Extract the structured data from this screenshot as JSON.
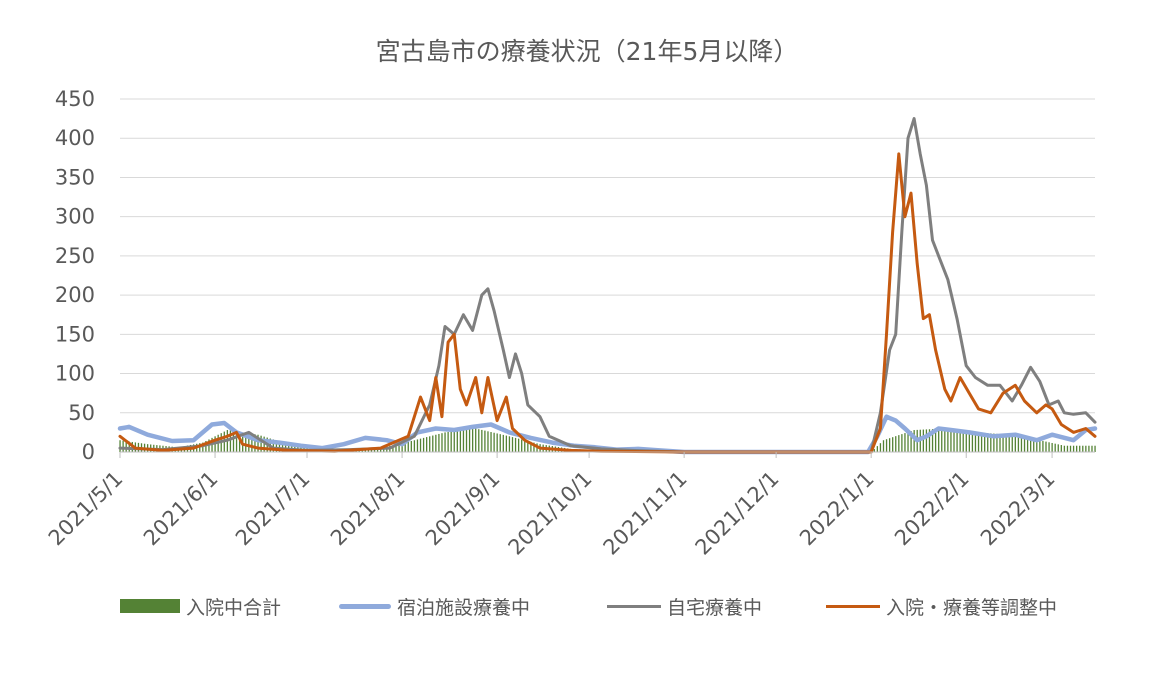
{
  "chart_data": {
    "type": "line",
    "title": "宮古島市の療養状況（21年5月以降）",
    "xlabel": "",
    "ylabel": "",
    "x_start": "2021-05-01",
    "x_end": "2022-03-15",
    "ylim": [
      0,
      450
    ],
    "yticks": [
      "450",
      "400",
      "350",
      "300",
      "250",
      "200",
      "150",
      "100",
      "50",
      "0"
    ],
    "xticks": [
      {
        "label": "2021/5/1",
        "date": "2021-05-01"
      },
      {
        "label": "2021/6/1",
        "date": "2021-06-01"
      },
      {
        "label": "2021/7/1",
        "date": "2021-07-01"
      },
      {
        "label": "2021/8/1",
        "date": "2021-08-01"
      },
      {
        "label": "2021/9/1",
        "date": "2021-09-01"
      },
      {
        "label": "2021/10/1",
        "date": "2021-10-01"
      },
      {
        "label": "2021/11/1",
        "date": "2021-11-01"
      },
      {
        "label": "2021/12/1",
        "date": "2021-12-01"
      },
      {
        "label": "2022/1/1",
        "date": "2022-01-01"
      },
      {
        "label": "2022/2/1",
        "date": "2022-02-01"
      },
      {
        "label": "2022/3/1",
        "date": "2022-03-01"
      }
    ],
    "grid": true,
    "legend_position": "bottom",
    "series": [
      {
        "name": "入院中合計",
        "kind": "bar",
        "color": "#548235",
        "points": [
          [
            "2021-05-01",
            15
          ],
          [
            "2021-05-10",
            10
          ],
          [
            "2021-05-20",
            6
          ],
          [
            "2021-05-28",
            12
          ],
          [
            "2021-06-05",
            28
          ],
          [
            "2021-06-15",
            22
          ],
          [
            "2021-06-25",
            10
          ],
          [
            "2021-07-05",
            3
          ],
          [
            "2021-07-15",
            2
          ],
          [
            "2021-07-25",
            5
          ],
          [
            "2021-08-05",
            15
          ],
          [
            "2021-08-15",
            25
          ],
          [
            "2021-08-25",
            30
          ],
          [
            "2021-09-05",
            20
          ],
          [
            "2021-09-15",
            10
          ],
          [
            "2021-09-25",
            4
          ],
          [
            "2021-10-05",
            2
          ],
          [
            "2021-10-15",
            1
          ],
          [
            "2021-11-01",
            0
          ],
          [
            "2022-01-01",
            0
          ],
          [
            "2022-01-05",
            15
          ],
          [
            "2022-01-15",
            28
          ],
          [
            "2022-01-25",
            30
          ],
          [
            "2022-02-05",
            25
          ],
          [
            "2022-02-15",
            22
          ],
          [
            "2022-02-25",
            15
          ],
          [
            "2022-03-05",
            8
          ],
          [
            "2022-03-15",
            8
          ]
        ]
      },
      {
        "name": "宿泊施設療養中",
        "kind": "line",
        "color": "#8faadc",
        "points": [
          [
            "2021-05-01",
            30
          ],
          [
            "2021-05-04",
            32
          ],
          [
            "2021-05-10",
            22
          ],
          [
            "2021-05-18",
            14
          ],
          [
            "2021-05-25",
            15
          ],
          [
            "2021-05-31",
            35
          ],
          [
            "2021-06-04",
            37
          ],
          [
            "2021-06-08",
            25
          ],
          [
            "2021-06-15",
            15
          ],
          [
            "2021-06-22",
            12
          ],
          [
            "2021-06-29",
            8
          ],
          [
            "2021-07-06",
            5
          ],
          [
            "2021-07-13",
            10
          ],
          [
            "2021-07-20",
            18
          ],
          [
            "2021-07-27",
            15
          ],
          [
            "2021-08-01",
            10
          ],
          [
            "2021-08-06",
            25
          ],
          [
            "2021-08-12",
            30
          ],
          [
            "2021-08-18",
            28
          ],
          [
            "2021-08-24",
            32
          ],
          [
            "2021-08-30",
            35
          ],
          [
            "2021-09-05",
            25
          ],
          [
            "2021-09-12",
            18
          ],
          [
            "2021-09-19",
            12
          ],
          [
            "2021-09-26",
            8
          ],
          [
            "2021-10-03",
            6
          ],
          [
            "2021-10-10",
            3
          ],
          [
            "2021-10-17",
            4
          ],
          [
            "2021-10-24",
            2
          ],
          [
            "2021-11-01",
            0
          ],
          [
            "2021-12-31",
            0
          ],
          [
            "2022-01-03",
            20
          ],
          [
            "2022-01-06",
            45
          ],
          [
            "2022-01-09",
            40
          ],
          [
            "2022-01-12",
            30
          ],
          [
            "2022-01-16",
            15
          ],
          [
            "2022-01-19",
            20
          ],
          [
            "2022-01-23",
            30
          ],
          [
            "2022-01-27",
            28
          ],
          [
            "2022-02-02",
            25
          ],
          [
            "2022-02-10",
            20
          ],
          [
            "2022-02-17",
            22
          ],
          [
            "2022-02-24",
            15
          ],
          [
            "2022-03-01",
            22
          ],
          [
            "2022-03-08",
            15
          ],
          [
            "2022-03-12",
            28
          ],
          [
            "2022-03-15",
            30
          ]
        ]
      },
      {
        "name": "自宅療養中",
        "kind": "line",
        "color": "#7f7f7f",
        "points": [
          [
            "2021-05-01",
            5
          ],
          [
            "2021-05-15",
            3
          ],
          [
            "2021-05-28",
            8
          ],
          [
            "2021-06-05",
            15
          ],
          [
            "2021-06-12",
            25
          ],
          [
            "2021-06-20",
            5
          ],
          [
            "2021-07-01",
            2
          ],
          [
            "2021-07-15",
            3
          ],
          [
            "2021-07-28",
            5
          ],
          [
            "2021-08-05",
            20
          ],
          [
            "2021-08-10",
            60
          ],
          [
            "2021-08-13",
            110
          ],
          [
            "2021-08-15",
            160
          ],
          [
            "2021-08-18",
            150
          ],
          [
            "2021-08-21",
            175
          ],
          [
            "2021-08-24",
            155
          ],
          [
            "2021-08-27",
            200
          ],
          [
            "2021-08-29",
            208
          ],
          [
            "2021-08-31",
            180
          ],
          [
            "2021-09-03",
            130
          ],
          [
            "2021-09-05",
            95
          ],
          [
            "2021-09-07",
            125
          ],
          [
            "2021-09-09",
            100
          ],
          [
            "2021-09-11",
            60
          ],
          [
            "2021-09-15",
            45
          ],
          [
            "2021-09-18",
            20
          ],
          [
            "2021-09-25",
            8
          ],
          [
            "2021-10-05",
            4
          ],
          [
            "2021-10-15",
            2
          ],
          [
            "2021-11-01",
            0
          ],
          [
            "2022-01-01",
            0
          ],
          [
            "2022-01-04",
            50
          ],
          [
            "2022-01-07",
            130
          ],
          [
            "2022-01-09",
            150
          ],
          [
            "2022-01-11",
            280
          ],
          [
            "2022-01-13",
            400
          ],
          [
            "2022-01-15",
            425
          ],
          [
            "2022-01-17",
            380
          ],
          [
            "2022-01-19",
            340
          ],
          [
            "2022-01-21",
            270
          ],
          [
            "2022-01-23",
            250
          ],
          [
            "2022-01-26",
            220
          ],
          [
            "2022-01-29",
            170
          ],
          [
            "2022-02-01",
            110
          ],
          [
            "2022-02-04",
            95
          ],
          [
            "2022-02-08",
            85
          ],
          [
            "2022-02-12",
            85
          ],
          [
            "2022-02-16",
            65
          ],
          [
            "2022-02-19",
            85
          ],
          [
            "2022-02-22",
            108
          ],
          [
            "2022-02-25",
            90
          ],
          [
            "2022-02-28",
            60
          ],
          [
            "2022-03-03",
            65
          ],
          [
            "2022-03-05",
            50
          ],
          [
            "2022-03-08",
            48
          ],
          [
            "2022-03-12",
            50
          ],
          [
            "2022-03-15",
            38
          ]
        ]
      },
      {
        "name": "入院・療養等調整中",
        "kind": "line",
        "color": "#c55a11",
        "points": [
          [
            "2021-05-01",
            20
          ],
          [
            "2021-05-06",
            5
          ],
          [
            "2021-05-15",
            2
          ],
          [
            "2021-05-25",
            5
          ],
          [
            "2021-06-01",
            15
          ],
          [
            "2021-06-05",
            20
          ],
          [
            "2021-06-08",
            25
          ],
          [
            "2021-06-10",
            10
          ],
          [
            "2021-06-15",
            5
          ],
          [
            "2021-06-25",
            2
          ],
          [
            "2021-07-10",
            1
          ],
          [
            "2021-07-25",
            5
          ],
          [
            "2021-08-03",
            20
          ],
          [
            "2021-08-07",
            70
          ],
          [
            "2021-08-10",
            40
          ],
          [
            "2021-08-12",
            95
          ],
          [
            "2021-08-14",
            45
          ],
          [
            "2021-08-16",
            140
          ],
          [
            "2021-08-18",
            150
          ],
          [
            "2021-08-20",
            80
          ],
          [
            "2021-08-22",
            60
          ],
          [
            "2021-08-25",
            95
          ],
          [
            "2021-08-27",
            50
          ],
          [
            "2021-08-29",
            95
          ],
          [
            "2021-09-01",
            40
          ],
          [
            "2021-09-04",
            70
          ],
          [
            "2021-09-06",
            30
          ],
          [
            "2021-09-10",
            15
          ],
          [
            "2021-09-15",
            5
          ],
          [
            "2021-09-25",
            2
          ],
          [
            "2021-10-05",
            1
          ],
          [
            "2021-11-01",
            0
          ],
          [
            "2022-01-01",
            0
          ],
          [
            "2022-01-04",
            30
          ],
          [
            "2022-01-06",
            150
          ],
          [
            "2022-01-08",
            280
          ],
          [
            "2022-01-10",
            380
          ],
          [
            "2022-01-12",
            300
          ],
          [
            "2022-01-14",
            330
          ],
          [
            "2022-01-16",
            240
          ],
          [
            "2022-01-18",
            170
          ],
          [
            "2022-01-20",
            175
          ],
          [
            "2022-01-22",
            130
          ],
          [
            "2022-01-25",
            80
          ],
          [
            "2022-01-27",
            65
          ],
          [
            "2022-01-30",
            95
          ],
          [
            "2022-02-02",
            75
          ],
          [
            "2022-02-05",
            55
          ],
          [
            "2022-02-09",
            50
          ],
          [
            "2022-02-13",
            75
          ],
          [
            "2022-02-17",
            85
          ],
          [
            "2022-02-20",
            65
          ],
          [
            "2022-02-24",
            50
          ],
          [
            "2022-02-27",
            60
          ],
          [
            "2022-03-01",
            55
          ],
          [
            "2022-03-04",
            35
          ],
          [
            "2022-03-08",
            25
          ],
          [
            "2022-03-12",
            30
          ],
          [
            "2022-03-15",
            20
          ]
        ]
      }
    ]
  }
}
